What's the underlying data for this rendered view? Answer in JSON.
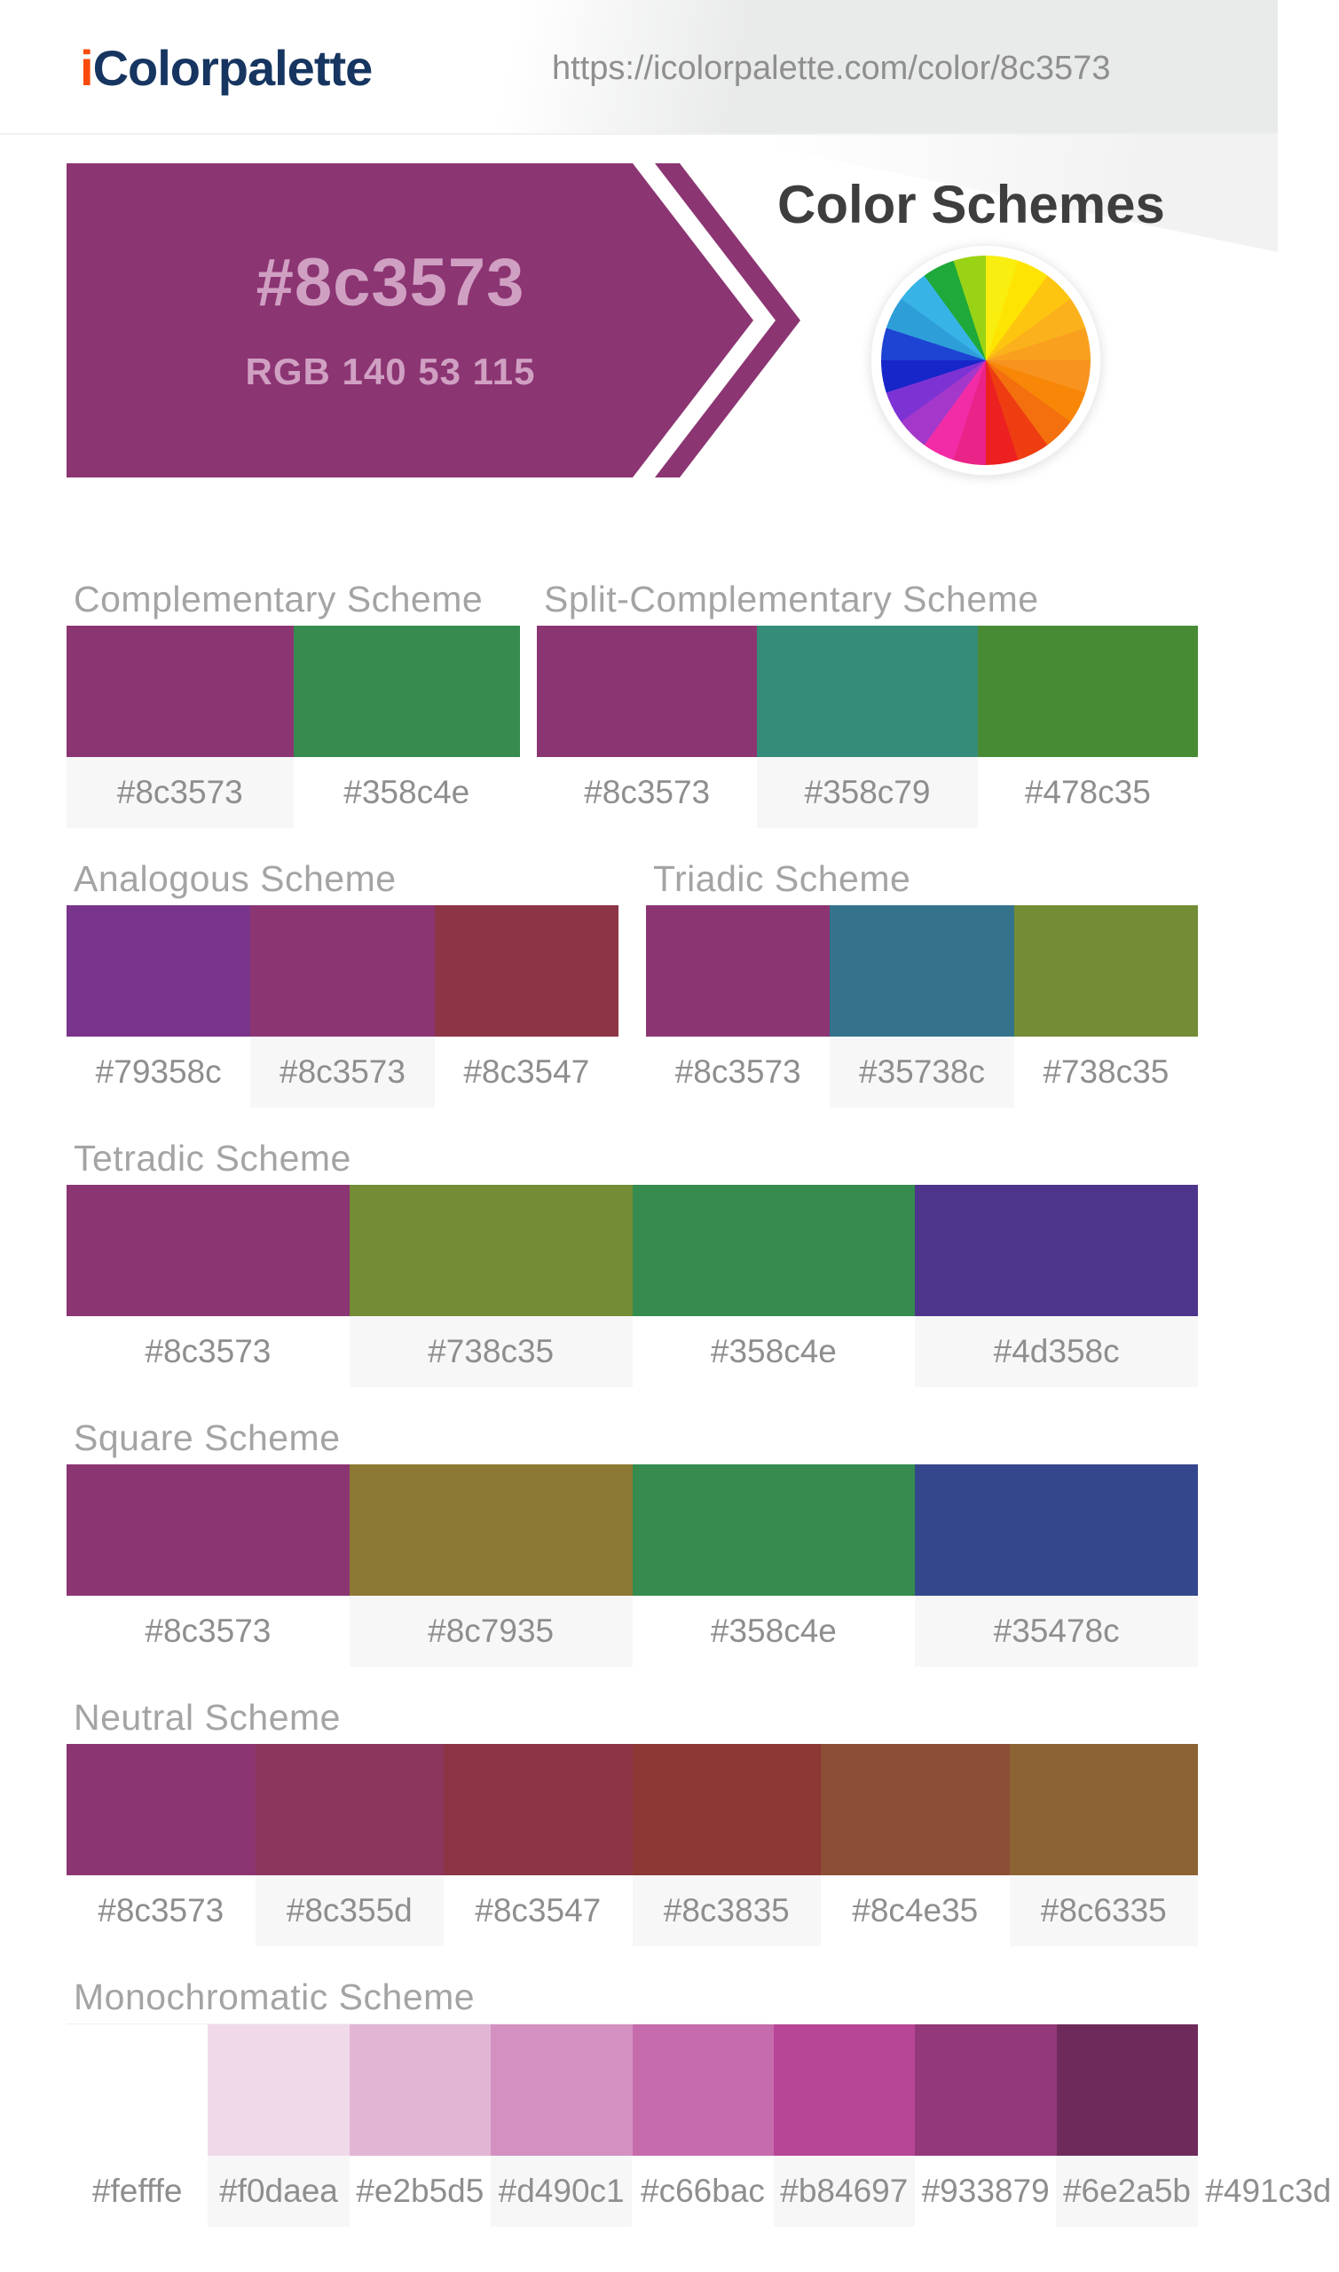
{
  "header": {
    "logo_prefix": "i",
    "logo_rest": "Colorpalette",
    "logo_prefix_color": "#fb4b0c",
    "logo_rest_color": "#163560",
    "url": "https://icolorpalette.com/color/8c3573"
  },
  "banner": {
    "hex": "#8c3573",
    "rgb": "RGB 140 53 115",
    "color": "#8c3573",
    "text_color": "#d0a0c3"
  },
  "schemes_title": "Color Schemes",
  "color_wheel": {
    "segments": [
      "#f8ee10",
      "#fee402",
      "#fdc50f",
      "#fbb11c",
      "#f9a01f",
      "#f89320",
      "#f88708",
      "#f4700f",
      "#ef3d12",
      "#ec2020",
      "#e92387",
      "#f22ca6",
      "#a438ca",
      "#7d33d4",
      "#1626c9",
      "#1d44d2",
      "#2e9ed9",
      "#38b3e6",
      "#1fa93a",
      "#9ad315"
    ]
  },
  "schemes": [
    {
      "name": "Complementary Scheme",
      "colors": [
        "#8c3573",
        "#358c4e"
      ]
    },
    {
      "name": "Split-Complementary Scheme",
      "colors": [
        "#8c3573",
        "#358c79",
        "#478c35"
      ]
    },
    {
      "name": "Analogous Scheme",
      "colors": [
        "#79358c",
        "#8c3573",
        "#8c3547"
      ]
    },
    {
      "name": "Triadic Scheme",
      "colors": [
        "#8c3573",
        "#35738c",
        "#738c35"
      ]
    },
    {
      "name": "Tetradic Scheme",
      "colors": [
        "#8c3573",
        "#738c35",
        "#358c4e",
        "#4d358c"
      ]
    },
    {
      "name": "Square Scheme",
      "colors": [
        "#8c3573",
        "#8c7935",
        "#358c4e",
        "#35478c"
      ]
    },
    {
      "name": "Neutral Scheme",
      "colors": [
        "#8c3573",
        "#8c355d",
        "#8c3547",
        "#8c3835",
        "#8c4e35",
        "#8c6335"
      ]
    },
    {
      "name": "Monochromatic Scheme",
      "colors": [
        "#fefffe",
        "#f0daea",
        "#e2b5d5",
        "#d490c1",
        "#c66bac",
        "#b84697",
        "#933879",
        "#6e2a5b",
        "#491c3d"
      ],
      "visible_swatches": 8
    }
  ]
}
